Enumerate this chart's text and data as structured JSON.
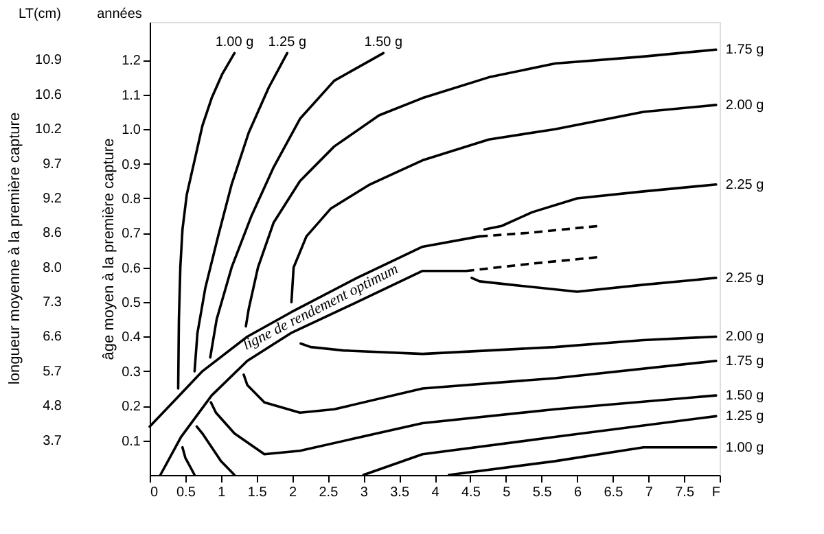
{
  "chart_data": {
    "type": "line",
    "ylabel": "âge moyen à la première capture",
    "annotations": [
      "longueur moyenne à la première capture",
      "LT(cm)",
      "années",
      "3.7",
      "4.8",
      "5.7",
      "6.6",
      "7.3",
      "8.0",
      "8.6",
      "9.2",
      "9.7",
      "10.2",
      "10.6",
      "10.9",
      "ligne de rendement optimum"
    ],
    "xlim": [
      0,
      8
    ],
    "xticks": [
      0,
      0.5,
      1,
      1.5,
      2,
      2.5,
      3,
      3.5,
      4,
      4.5,
      5,
      5.5,
      6,
      6.5,
      7,
      7.5,
      {
        "value": 8,
        "label": "F"
      }
    ],
    "ylim": [
      0,
      1.31
    ],
    "yticks": [
      0.1,
      0.2,
      0.3,
      0.4,
      0.5,
      0.6,
      0.7,
      0.8,
      0.9,
      {
        "value": 1,
        "label": "1.0"
      },
      1.1,
      1.2
    ],
    "grid": false,
    "legend": false,
    "marker": "none",
    "series": [
      {
        "name": "1.00 g",
        "color": "#000000",
        "x": [
          1.19,
          1.02,
          0.87,
          0.74,
          0.63,
          0.52,
          0.46,
          0.43,
          0.41,
          0.4
        ],
        "values": [
          1.22,
          1.16,
          1.09,
          1.01,
          0.91,
          0.81,
          0.71,
          0.6,
          0.45,
          0.25
        ]
      },
      {
        "name": "1.25 g",
        "color": "#000000",
        "x": [
          1.93,
          1.67,
          1.39,
          1.15,
          0.96,
          0.78,
          0.67,
          0.63
        ],
        "values": [
          1.22,
          1.12,
          0.99,
          0.84,
          0.69,
          0.54,
          0.41,
          0.3
        ]
      },
      {
        "name": "1.50 g",
        "color": "#000000",
        "x": [
          3.28,
          2.59,
          2.11,
          1.74,
          1.43,
          1.15,
          0.94,
          0.85
        ],
        "values": [
          1.22,
          1.14,
          1.03,
          0.89,
          0.75,
          0.6,
          0.45,
          0.34
        ]
      },
      {
        "name": "1.75 g",
        "color": "#000000",
        "x": [
          7.95,
          6.93,
          5.69,
          4.76,
          3.83,
          3.22,
          2.59,
          2.11,
          1.74,
          1.52,
          1.39,
          1.35
        ],
        "values": [
          1.23,
          1.21,
          1.19,
          1.15,
          1.09,
          1.04,
          0.95,
          0.85,
          0.73,
          0.6,
          0.48,
          0.43
        ]
      },
      {
        "name": "2.00 g",
        "color": "#000000",
        "x": [
          7.95,
          6.93,
          5.69,
          4.76,
          3.83,
          3.09,
          2.54,
          2.2,
          2.02,
          1.99
        ],
        "values": [
          1.07,
          1.05,
          1.0,
          0.97,
          0.91,
          0.84,
          0.77,
          0.69,
          0.6,
          0.5
        ]
      },
      {
        "name": "2.25 g",
        "color": "#000000",
        "x": [
          7.95,
          6.93,
          6.0,
          5.37,
          4.94,
          4.7
        ],
        "values": [
          0.84,
          0.82,
          0.8,
          0.76,
          0.72,
          0.71
        ]
      },
      {
        "name": "2.25 g",
        "color": "#000000",
        "x": [
          7.95,
          6.93,
          6.0,
          5.07,
          4.63,
          4.52
        ],
        "values": [
          0.57,
          0.55,
          0.53,
          0.55,
          0.56,
          0.57
        ]
      },
      {
        "name": "2.00 g",
        "color": "#000000",
        "x": [
          7.95,
          6.93,
          5.69,
          4.76,
          3.83,
          2.72,
          2.26,
          2.12
        ],
        "values": [
          0.4,
          0.39,
          0.37,
          0.36,
          0.35,
          0.36,
          0.37,
          0.38
        ]
      },
      {
        "name": "1.75 g",
        "color": "#000000",
        "x": [
          7.95,
          5.69,
          3.83,
          2.59,
          2.11,
          1.61,
          1.37,
          1.32
        ],
        "values": [
          0.33,
          0.28,
          0.25,
          0.19,
          0.18,
          0.21,
          0.26,
          0.29
        ]
      },
      {
        "name": "1.50 g",
        "color": "#000000",
        "x": [
          7.95,
          5.69,
          3.83,
          2.11,
          1.61,
          1.19,
          0.93,
          0.86
        ],
        "values": [
          0.23,
          0.19,
          0.15,
          0.07,
          0.06,
          0.12,
          0.18,
          0.21
        ]
      },
      {
        "name": "1.25 g",
        "color": "#000000",
        "x": [
          7.95,
          5.69,
          3.83,
          3.0
        ],
        "values": [
          0.17,
          0.11,
          0.06,
          0
        ]
      },
      {
        "name": "1.00 g",
        "color": "#000000",
        "x": [
          7.95,
          6.93,
          5.69,
          4.2
        ],
        "values": [
          0.08,
          0.08,
          0.04,
          0
        ]
      },
      {
        "color": "#000000",
        "x": [
          0.46,
          0.5,
          0.63
        ],
        "values": [
          0.08,
          0.05,
          0
        ]
      },
      {
        "color": "#000000",
        "x": [
          0.66,
          0.74,
          1.0,
          1.19
        ],
        "values": [
          0.14,
          0.12,
          0.04,
          0
        ]
      },
      {
        "color": "#000000",
        "x": [
          0,
          0.37,
          0.74,
          1.37,
          1.98,
          2.91,
          3.83,
          4.63
        ],
        "values": [
          0.14,
          0.22,
          0.3,
          0.4,
          0.47,
          0.57,
          0.66,
          0.69
        ]
      },
      {
        "color": "#000000",
        "line_style": "dashed",
        "x": [
          4.63,
          5.31,
          6.3
        ],
        "values": [
          0.69,
          0.7,
          0.72
        ]
      },
      {
        "color": "#000000",
        "x": [
          0.15,
          0.44,
          0.87,
          1.37,
          1.98,
          2.91,
          3.83,
          4.44
        ],
        "values": [
          0,
          0.11,
          0.23,
          0.33,
          0.41,
          0.5,
          0.59,
          0.59
        ]
      },
      {
        "color": "#000000",
        "line_style": "dashed",
        "x": [
          4.44,
          5.31,
          6.3
        ],
        "values": [
          0.59,
          0.61,
          0.63
        ]
      }
    ]
  }
}
